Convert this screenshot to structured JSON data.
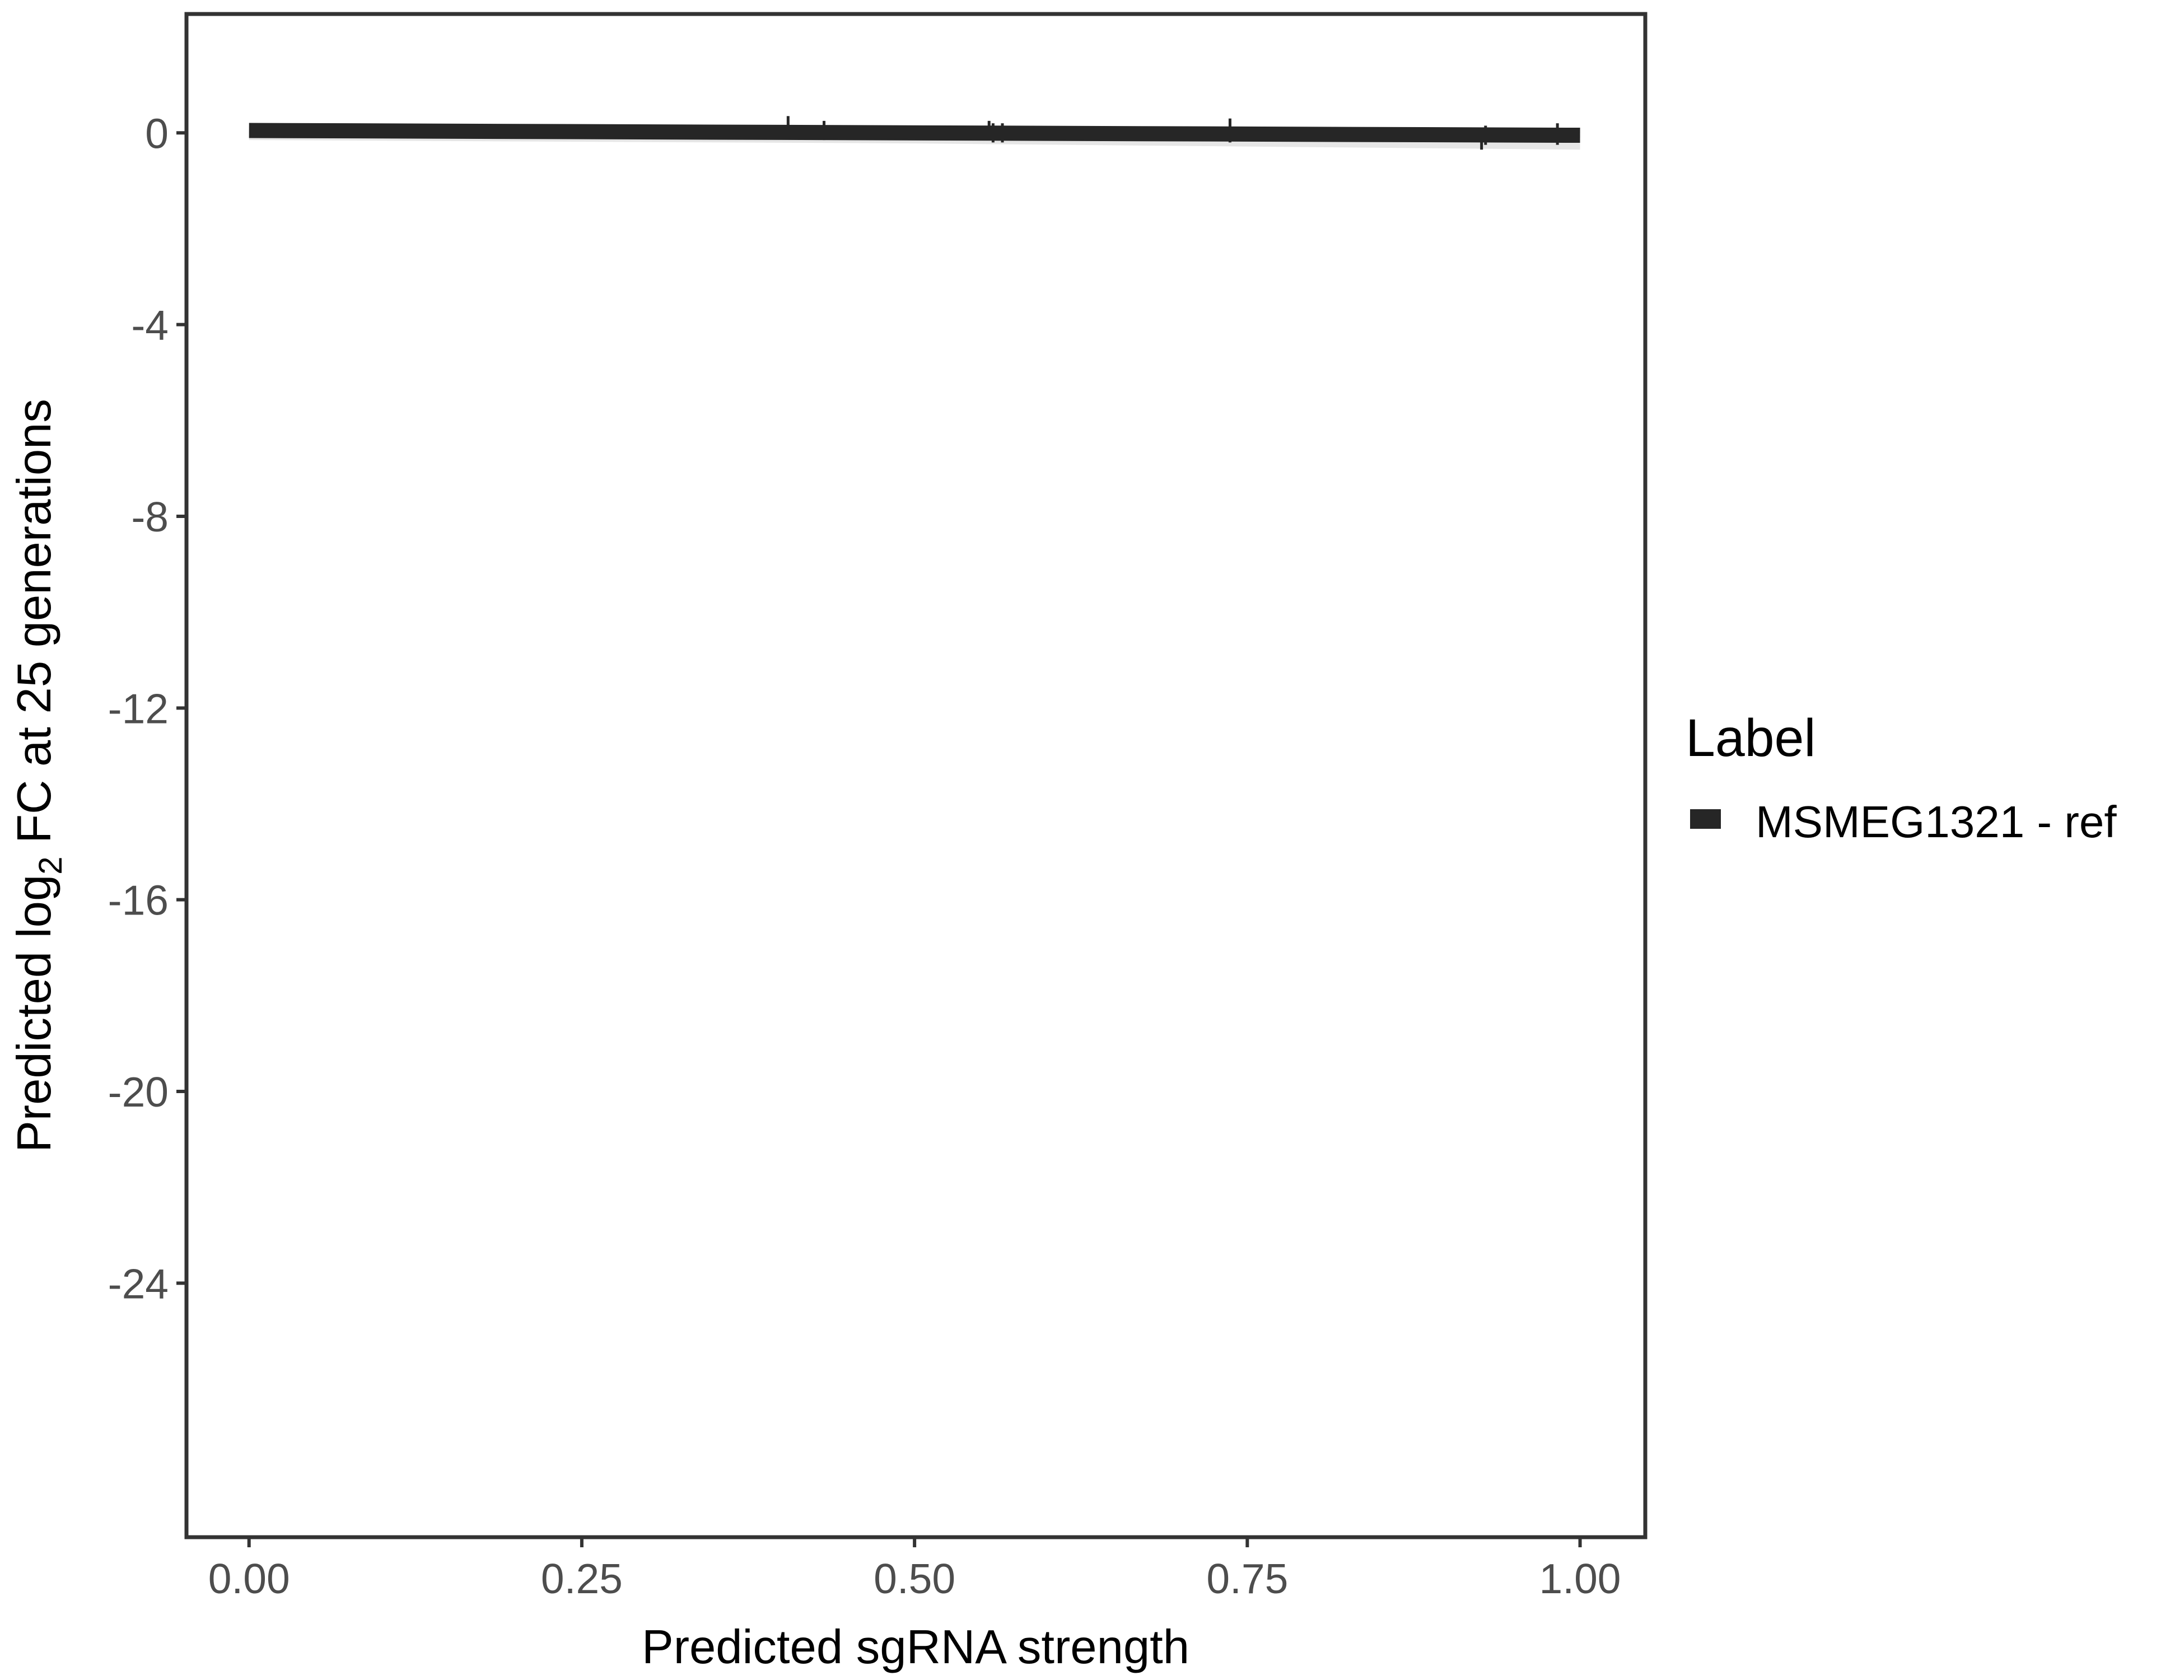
{
  "chart_data": {
    "type": "line",
    "title": "",
    "xlabel": "Predicted sgRNA strength",
    "ylabel_parts": {
      "pre": "Predicted  log",
      "sub": "2",
      "post": " FC at 25 generations"
    },
    "xlim": [
      -0.047,
      1.049
    ],
    "ylim": [
      -29.3,
      2.48
    ],
    "x_ticks": [
      0,
      0.25,
      0.5,
      0.75,
      1
    ],
    "x_tick_labels": [
      "0.00",
      "0.25",
      "0.50",
      "0.75",
      "1.00"
    ],
    "y_ticks": [
      0,
      -4,
      -8,
      -12,
      -16,
      -20,
      -24
    ],
    "y_tick_labels": [
      "0",
      "-4",
      "-8",
      "-12",
      "-16",
      "-20",
      "-24"
    ],
    "grid": false,
    "legend": {
      "title": "Label",
      "placement": "right",
      "entries": [
        "MSMEG1321 - ref"
      ]
    },
    "colors": {
      "line": "#262626",
      "ribbon": "#e6e6e6",
      "axis": "#333333"
    },
    "series": [
      {
        "name": "MSMEG1321 - ref",
        "fit_line": {
          "x": [
            0,
            1
          ],
          "y": [
            0.05,
            -0.05
          ]
        },
        "ribbon": {
          "x": [
            0,
            0.5,
            1
          ],
          "lower": [
            -0.15,
            -0.22,
            -0.35
          ],
          "upper": [
            0.08,
            0.05,
            0.0
          ]
        },
        "error_bars": [
          {
            "x": 0.405,
            "lo": -0.1,
            "hi": 0.35
          },
          {
            "x": 0.432,
            "lo": -0.15,
            "hi": 0.25
          },
          {
            "x": 0.556,
            "lo": -0.15,
            "hi": 0.25
          },
          {
            "x": 0.559,
            "lo": -0.2,
            "hi": 0.2
          },
          {
            "x": 0.566,
            "lo": -0.2,
            "hi": 0.2
          },
          {
            "x": 0.737,
            "lo": -0.2,
            "hi": 0.3
          },
          {
            "x": 0.926,
            "lo": -0.35,
            "hi": 0.0
          },
          {
            "x": 0.929,
            "lo": -0.25,
            "hi": 0.15
          },
          {
            "x": 0.983,
            "lo": -0.25,
            "hi": 0.2
          }
        ]
      }
    ]
  }
}
